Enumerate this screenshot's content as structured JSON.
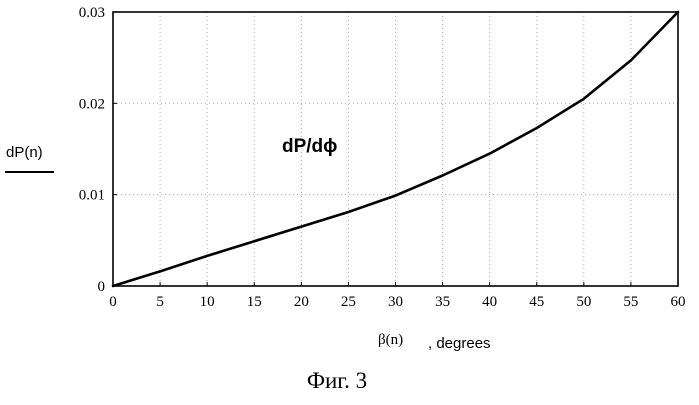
{
  "chart_data": {
    "type": "line",
    "title": "",
    "annotation": "dP/dϕ",
    "ylabel": "dP(n)",
    "xlabel_symbol": "β(n)",
    "xlabel_unit": ", degrees",
    "xlim": [
      0,
      60
    ],
    "ylim": [
      0,
      0.03
    ],
    "x_ticks": [
      0,
      5,
      10,
      15,
      20,
      25,
      30,
      35,
      40,
      45,
      50,
      55,
      60
    ],
    "y_ticks": [
      0,
      0.01,
      0.02,
      0.03
    ],
    "y_tick_labels": [
      "0",
      "0.01",
      "0.02",
      "0.03"
    ],
    "grid": true,
    "legend": "none",
    "series": [
      {
        "x": [
          0,
          5,
          10,
          15,
          20,
          25,
          30,
          35,
          40,
          45,
          50,
          55,
          60
        ],
        "values": [
          0,
          0.0016,
          0.0033,
          0.0049,
          0.0065,
          0.0081,
          0.0099,
          0.0121,
          0.0145,
          0.0173,
          0.0205,
          0.0247,
          0.03
        ]
      }
    ]
  },
  "caption": "Фиг. 3"
}
